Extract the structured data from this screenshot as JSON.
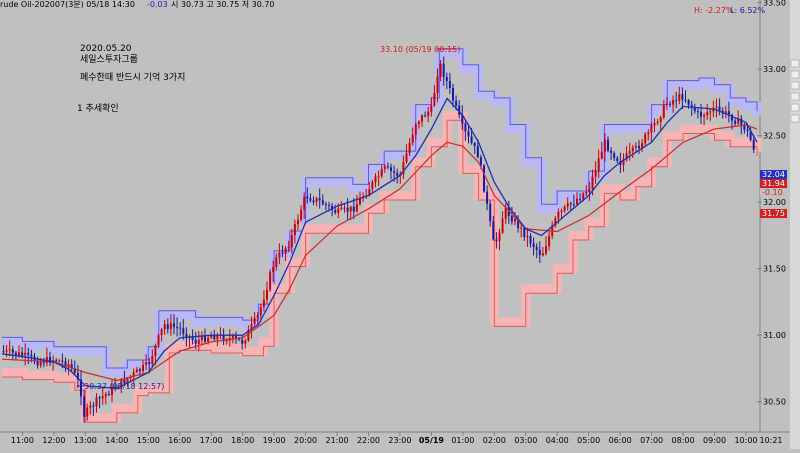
{
  "header": {
    "title": "rude Oil-202007(3분) 05/18 14:30",
    "change": "-0.03",
    "ohlc": "시 30.73  고 30.75  저 30.70",
    "high_pct": "H: -2.27%",
    "low_pct": "L: 6.52%"
  },
  "notes": {
    "date": "2020.05.20",
    "company": "세일스투자그룹",
    "memo": "폐수한때 반드시 기억 3가지",
    "point1": "1 추세확인"
  },
  "annotations": {
    "high": "33.10 (05/19 00:15)",
    "low": "30.37 (05/18 12:57)"
  },
  "price_tags": {
    "tag1": "32.04",
    "tag2": "31.94",
    "tag3": "-0.10",
    "tag4": "31.75"
  },
  "colors": {
    "background": "#c0c0c0",
    "candle_up": "#cc0000",
    "candle_down": "#1a1aa0",
    "upper_band": "#b8b8f4",
    "lower_band": "#f6b4b4",
    "ma_fast": "#1f2fb0",
    "ma_slow": "#d22828",
    "annotation_high": "#d01818",
    "annotation_low": "#2020a0"
  },
  "chart_data": {
    "type": "line",
    "title": "",
    "xlabel": "",
    "ylabel": "",
    "ylim": [
      30.28,
      33.52
    ],
    "y_ticks": [
      "33.50",
      "33.00",
      "32.50",
      "32.00",
      "31.50",
      "31.00",
      "30.50"
    ],
    "y_tick_values": [
      33.5,
      33.0,
      32.5,
      32.0,
      31.5,
      31.0,
      30.5
    ],
    "x_tick_labels": [
      "11:00",
      "12:00",
      "13:00",
      "14:00",
      "15:00",
      "16:00",
      "17:00",
      "18:00",
      "19:00",
      "20:00",
      "21:00",
      "22:00",
      "23:00",
      "05/19",
      "01:00",
      "02:00",
      "03:00",
      "04:00",
      "05:00",
      "06:00",
      "07:00",
      "08:00",
      "09:00",
      "10:00",
      "10:21"
    ],
    "x_start": "2020-05-18 10:21",
    "x_end": "2020-05-19 10:21",
    "grid": false,
    "series": [
      {
        "kind": "price",
        "points": [
          [
            "10:21",
            30.88
          ],
          [
            "11:00",
            30.85
          ],
          [
            "11:30",
            30.8
          ],
          [
            "12:00",
            30.82
          ],
          [
            "12:30",
            30.78
          ],
          [
            "12:50",
            30.62
          ],
          [
            "12:57",
            30.4
          ],
          [
            "13:20",
            30.5
          ],
          [
            "14:00",
            30.62
          ],
          [
            "14:30",
            30.7
          ],
          [
            "15:00",
            30.78
          ],
          [
            "15:30",
            31.08
          ],
          [
            "16:00",
            31.05
          ],
          [
            "16:30",
            30.95
          ],
          [
            "17:00",
            31.0
          ],
          [
            "17:30",
            30.98
          ],
          [
            "18:00",
            30.95
          ],
          [
            "18:30",
            31.15
          ],
          [
            "19:00",
            31.55
          ],
          [
            "19:30",
            31.7
          ],
          [
            "20:00",
            32.05
          ],
          [
            "20:30",
            32.0
          ],
          [
            "21:00",
            31.92
          ],
          [
            "21:30",
            31.95
          ],
          [
            "22:00",
            32.1
          ],
          [
            "22:30",
            32.25
          ],
          [
            "23:00",
            32.2
          ],
          [
            "23:30",
            32.6
          ],
          [
            "00:00",
            32.7
          ],
          [
            "00:15",
            33.05
          ],
          [
            "00:30",
            32.9
          ],
          [
            "01:00",
            32.55
          ],
          [
            "01:30",
            32.35
          ],
          [
            "02:00",
            31.65
          ],
          [
            "02:20",
            31.95
          ],
          [
            "03:00",
            31.75
          ],
          [
            "03:30",
            31.6
          ],
          [
            "04:00",
            31.9
          ],
          [
            "04:30",
            32.0
          ],
          [
            "05:00",
            32.1
          ],
          [
            "05:30",
            32.45
          ],
          [
            "06:00",
            32.3
          ],
          [
            "06:30",
            32.4
          ],
          [
            "07:00",
            32.55
          ],
          [
            "07:30",
            32.75
          ],
          [
            "08:00",
            32.8
          ],
          [
            "08:30",
            32.65
          ],
          [
            "09:00",
            32.7
          ],
          [
            "09:30",
            32.65
          ],
          [
            "10:00",
            32.55
          ],
          [
            "10:21",
            32.35
          ]
        ]
      },
      {
        "kind": "ma",
        "points": [
          [
            "10:21",
            30.86
          ],
          [
            "11:00",
            30.84
          ],
          [
            "12:00",
            30.8
          ],
          [
            "12:30",
            30.74
          ],
          [
            "13:00",
            30.62
          ],
          [
            "14:00",
            30.6
          ],
          [
            "15:00",
            30.72
          ],
          [
            "15:30",
            30.88
          ],
          [
            "16:00",
            30.98
          ],
          [
            "17:00",
            31.0
          ],
          [
            "18:00",
            31.0
          ],
          [
            "18:30",
            31.08
          ],
          [
            "19:00",
            31.3
          ],
          [
            "19:30",
            31.55
          ],
          [
            "20:00",
            31.85
          ],
          [
            "21:00",
            31.97
          ],
          [
            "22:00",
            32.05
          ],
          [
            "23:00",
            32.2
          ],
          [
            "23:30",
            32.35
          ],
          [
            "00:00",
            32.55
          ],
          [
            "00:30",
            32.78
          ],
          [
            "01:00",
            32.65
          ],
          [
            "01:30",
            32.45
          ],
          [
            "02:00",
            32.15
          ],
          [
            "02:30",
            31.95
          ],
          [
            "03:00",
            31.8
          ],
          [
            "03:30",
            31.75
          ],
          [
            "04:00",
            31.85
          ],
          [
            "05:00",
            32.05
          ],
          [
            "05:30",
            32.2
          ],
          [
            "06:00",
            32.3
          ],
          [
            "07:00",
            32.45
          ],
          [
            "07:30",
            32.6
          ],
          [
            "08:00",
            32.72
          ],
          [
            "09:00",
            32.7
          ],
          [
            "09:30",
            32.65
          ],
          [
            "10:00",
            32.6
          ],
          [
            "10:21",
            32.45
          ]
        ]
      },
      {
        "kind": "ma",
        "points": [
          [
            "10:21",
            30.82
          ],
          [
            "12:00",
            30.8
          ],
          [
            "13:00",
            30.72
          ],
          [
            "14:00",
            30.66
          ],
          [
            "15:00",
            30.72
          ],
          [
            "16:00",
            30.88
          ],
          [
            "17:00",
            30.95
          ],
          [
            "18:00",
            30.98
          ],
          [
            "19:00",
            31.15
          ],
          [
            "19:30",
            31.35
          ],
          [
            "20:00",
            31.6
          ],
          [
            "21:00",
            31.82
          ],
          [
            "22:00",
            31.95
          ],
          [
            "23:00",
            32.1
          ],
          [
            "00:00",
            32.35
          ],
          [
            "00:30",
            32.45
          ],
          [
            "01:00",
            32.42
          ],
          [
            "01:30",
            32.3
          ],
          [
            "02:00",
            32.05
          ],
          [
            "03:00",
            31.8
          ],
          [
            "04:00",
            31.78
          ],
          [
            "05:00",
            31.9
          ],
          [
            "06:00",
            32.08
          ],
          [
            "07:00",
            32.25
          ],
          [
            "08:00",
            32.45
          ],
          [
            "09:00",
            32.55
          ],
          [
            "10:00",
            32.58
          ],
          [
            "10:21",
            32.55
          ]
        ]
      },
      {
        "kind": "upper_band",
        "points": [
          [
            "10:21",
            30.95
          ],
          [
            "11:00",
            30.92
          ],
          [
            "12:00",
            30.88
          ],
          [
            "13:00",
            30.88
          ],
          [
            "13:40",
            30.72
          ],
          [
            "14:20",
            30.78
          ],
          [
            "15:00",
            30.88
          ],
          [
            "15:20",
            31.15
          ],
          [
            "16:00",
            31.15
          ],
          [
            "16:30",
            31.1
          ],
          [
            "17:00",
            31.1
          ],
          [
            "18:00",
            31.08
          ],
          [
            "18:30",
            31.2
          ],
          [
            "19:00",
            31.6
          ],
          [
            "19:30",
            31.75
          ],
          [
            "20:00",
            32.15
          ],
          [
            "21:00",
            32.15
          ],
          [
            "21:30",
            32.1
          ],
          [
            "22:00",
            32.25
          ],
          [
            "22:30",
            32.35
          ],
          [
            "23:00",
            32.35
          ],
          [
            "23:30",
            32.7
          ],
          [
            "00:00",
            32.75
          ],
          [
            "00:15",
            33.12
          ],
          [
            "01:00",
            33.0
          ],
          [
            "01:30",
            32.8
          ],
          [
            "02:00",
            32.75
          ],
          [
            "02:30",
            32.55
          ],
          [
            "03:00",
            32.3
          ],
          [
            "03:30",
            31.95
          ],
          [
            "04:00",
            32.05
          ],
          [
            "05:00",
            32.2
          ],
          [
            "05:30",
            32.55
          ],
          [
            "06:00",
            32.55
          ],
          [
            "06:30",
            32.55
          ],
          [
            "07:00",
            32.7
          ],
          [
            "07:30",
            32.88
          ],
          [
            "08:00",
            32.88
          ],
          [
            "08:30",
            32.9
          ],
          [
            "09:00",
            32.85
          ],
          [
            "09:30",
            32.75
          ],
          [
            "10:00",
            32.72
          ],
          [
            "10:21",
            32.65
          ]
        ]
      },
      {
        "kind": "lower_band",
        "points": [
          [
            "10:21",
            30.72
          ],
          [
            "11:00",
            30.7
          ],
          [
            "12:00",
            30.68
          ],
          [
            "12:40",
            30.62
          ],
          [
            "13:00",
            30.38
          ],
          [
            "14:00",
            30.45
          ],
          [
            "14:40",
            30.58
          ],
          [
            "15:00",
            30.6
          ],
          [
            "15:40",
            30.9
          ],
          [
            "16:00",
            30.92
          ],
          [
            "17:00",
            30.9
          ],
          [
            "18:00",
            30.88
          ],
          [
            "18:40",
            30.95
          ],
          [
            "19:00",
            31.35
          ],
          [
            "19:30",
            31.55
          ],
          [
            "20:00",
            31.8
          ],
          [
            "21:00",
            31.8
          ],
          [
            "22:00",
            31.95
          ],
          [
            "22:30",
            32.05
          ],
          [
            "23:00",
            32.05
          ],
          [
            "23:30",
            32.3
          ],
          [
            "00:00",
            32.45
          ],
          [
            "00:30",
            32.65
          ],
          [
            "01:00",
            32.25
          ],
          [
            "01:30",
            32.05
          ],
          [
            "02:00",
            31.1
          ],
          [
            "02:40",
            31.1
          ],
          [
            "03:00",
            31.35
          ],
          [
            "04:00",
            31.5
          ],
          [
            "04:30",
            31.75
          ],
          [
            "05:00",
            31.85
          ],
          [
            "05:30",
            32.1
          ],
          [
            "06:00",
            32.05
          ],
          [
            "06:30",
            32.15
          ],
          [
            "07:00",
            32.3
          ],
          [
            "07:30",
            32.5
          ],
          [
            "08:00",
            32.55
          ],
          [
            "09:00",
            32.5
          ],
          [
            "09:30",
            32.45
          ],
          [
            "10:00",
            32.45
          ],
          [
            "10:21",
            32.38
          ]
        ]
      }
    ]
  }
}
